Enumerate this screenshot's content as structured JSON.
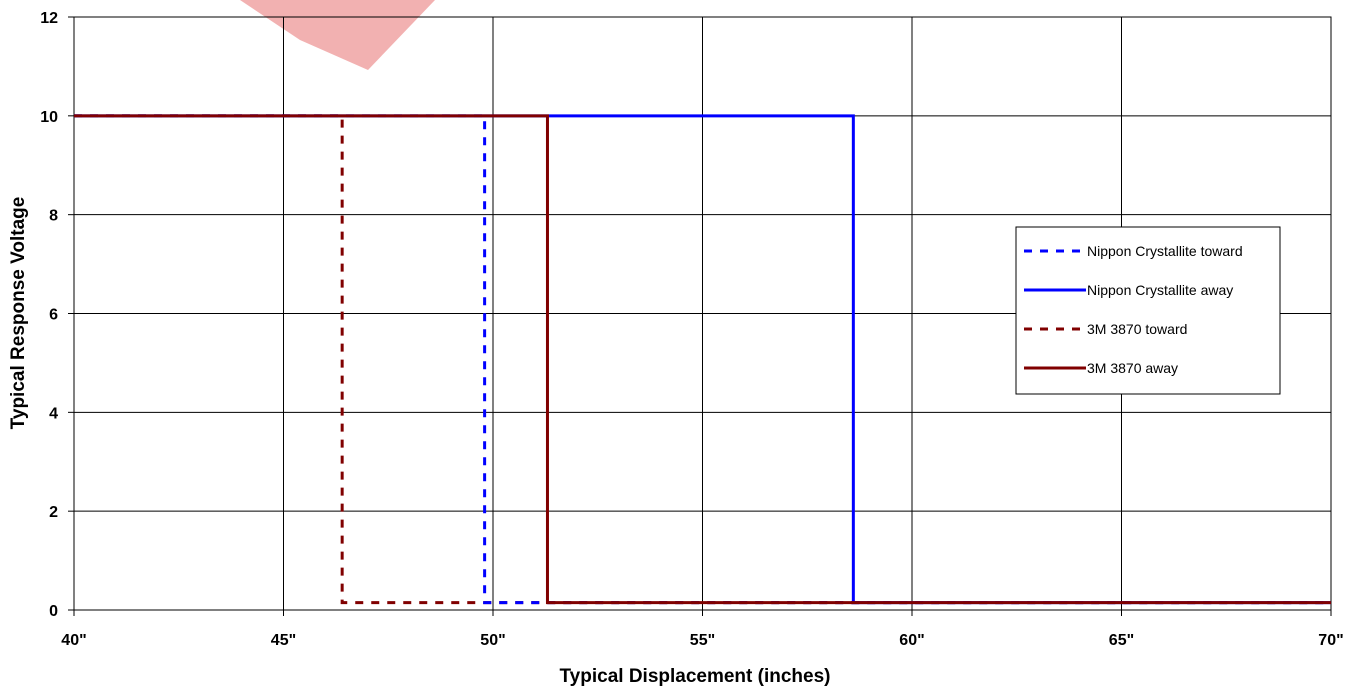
{
  "chart_data": {
    "type": "line",
    "title": "",
    "xlabel": "Typical Displacement (inches)",
    "ylabel": "Typical Response Voltage",
    "xlim": [
      40,
      70
    ],
    "ylim": [
      0,
      12
    ],
    "x_ticks": [
      40,
      45,
      50,
      55,
      60,
      65,
      70
    ],
    "x_tick_labels": [
      "40\"",
      "45\"",
      "50\"",
      "55\"",
      "60\"",
      "65\"",
      "70\""
    ],
    "y_ticks": [
      0,
      2,
      4,
      6,
      8,
      10,
      12
    ],
    "y_tick_labels": [
      "0",
      "2",
      "4",
      "6",
      "8",
      "10",
      "12"
    ],
    "grid": true,
    "legend_position": "right",
    "series": [
      {
        "name": "Nippon Crystallite toward",
        "color": "#0000FF",
        "dash": "dashed",
        "x": [
          40,
          49.8,
          49.8,
          70
        ],
        "y": [
          10,
          10,
          0.15,
          0.15
        ]
      },
      {
        "name": "Nippon Crystallite away",
        "color": "#0000FF",
        "dash": "solid",
        "x": [
          40,
          58.6,
          58.6,
          70
        ],
        "y": [
          10,
          10,
          0.15,
          0.15
        ]
      },
      {
        "name": "3M 3870 toward",
        "color": "#800000",
        "dash": "dashed",
        "x": [
          40,
          46.4,
          46.4,
          70
        ],
        "y": [
          10,
          10,
          0.15,
          0.15
        ]
      },
      {
        "name": "3M 3870 away",
        "color": "#800000",
        "dash": "solid",
        "x": [
          40,
          51.3,
          51.3,
          70
        ],
        "y": [
          10,
          10,
          0.15,
          0.15
        ]
      }
    ]
  }
}
